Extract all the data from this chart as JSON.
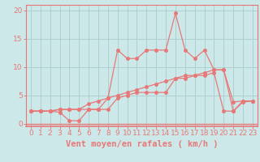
{
  "xlabel": "Vent moyen/en rafales ( km/h )",
  "bg_color": "#cce8e8",
  "line_color": "#e87878",
  "grid_color": "#aacccc",
  "xlim": [
    -0.5,
    23.5
  ],
  "ylim": [
    -0.5,
    21
  ],
  "yticks": [
    0,
    5,
    10,
    15,
    20
  ],
  "xticks": [
    0,
    1,
    2,
    3,
    4,
    5,
    6,
    7,
    8,
    9,
    10,
    11,
    12,
    13,
    14,
    15,
    16,
    17,
    18,
    19,
    20,
    21,
    22,
    23
  ],
  "line1_x": [
    0,
    1,
    2,
    3,
    4,
    5,
    6,
    7,
    8,
    9,
    10,
    11,
    12,
    13,
    14,
    15,
    16,
    17,
    18,
    19,
    20,
    21,
    22,
    23
  ],
  "line1_y": [
    2.2,
    2.2,
    2.2,
    2.5,
    2.5,
    2.5,
    3.5,
    4.0,
    4.5,
    5.0,
    5.5,
    6.0,
    6.5,
    7.0,
    7.5,
    8.0,
    8.5,
    8.5,
    9.0,
    9.5,
    9.5,
    2.2,
    3.8,
    4.0
  ],
  "line2_x": [
    0,
    1,
    2,
    3,
    4,
    5,
    6,
    7,
    8,
    9,
    10,
    11,
    12,
    13,
    14,
    15,
    16,
    17,
    18,
    19,
    20,
    21,
    22,
    23
  ],
  "line2_y": [
    2.2,
    2.2,
    2.2,
    2.5,
    2.5,
    2.5,
    2.5,
    2.5,
    4.5,
    13.0,
    11.5,
    11.5,
    13.0,
    13.0,
    13.0,
    19.5,
    13.0,
    11.5,
    13.0,
    9.5,
    9.5,
    3.8,
    4.0,
    4.0
  ],
  "line3_x": [
    0,
    1,
    2,
    3,
    4,
    5,
    6,
    7,
    8,
    9,
    10,
    11,
    12,
    13,
    14,
    15,
    16,
    17,
    18,
    19,
    20,
    21,
    22,
    23
  ],
  "line3_y": [
    2.2,
    2.2,
    2.2,
    2.0,
    0.5,
    0.5,
    2.5,
    2.5,
    2.5,
    4.5,
    5.0,
    5.5,
    5.5,
    5.5,
    5.5,
    8.0,
    8.0,
    8.5,
    8.5,
    9.0,
    2.2,
    2.2,
    4.0,
    4.0
  ],
  "xlabel_fontsize": 7.5,
  "tick_fontsize": 6.5,
  "ylabel_fontsize": 7
}
